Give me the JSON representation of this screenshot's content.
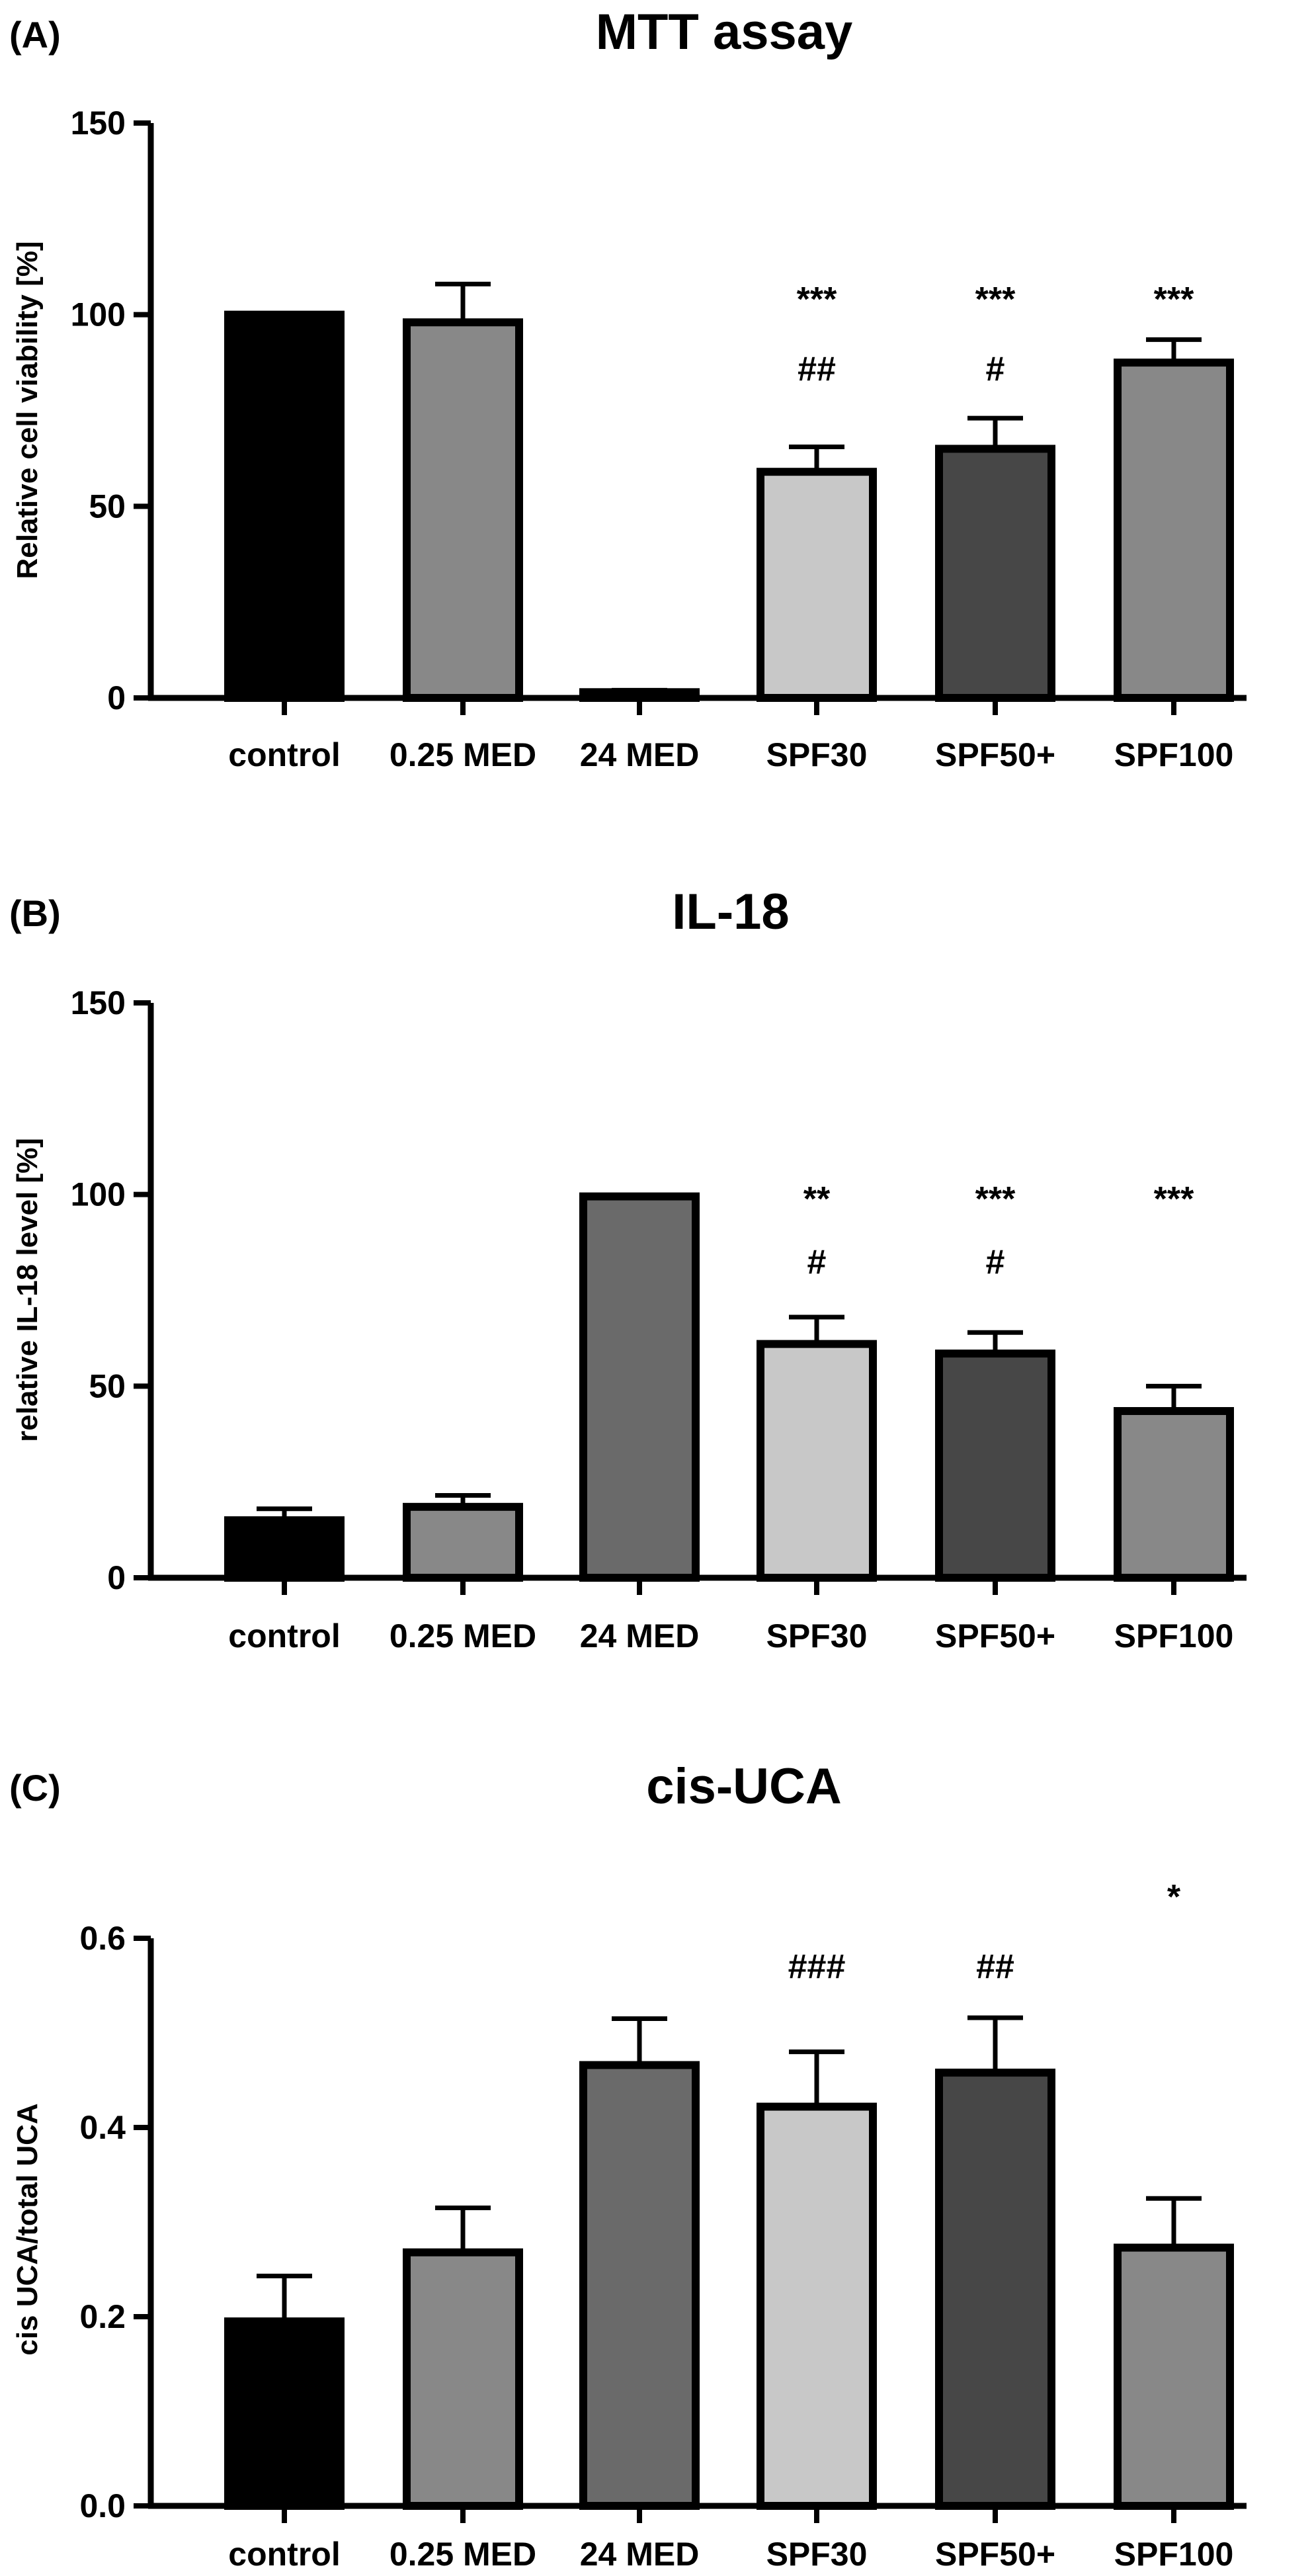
{
  "figure_type": "bar",
  "chart_data": [
    {
      "type": "bar",
      "panel": "(A)",
      "title": "MTT assay",
      "xlabel": "",
      "ylabel": "Relative cell viability [%]",
      "ylim": [
        0,
        150
      ],
      "yticks": [
        "0",
        "50",
        "100",
        "150"
      ],
      "grid": false,
      "categories": [
        "control",
        "0.25 MED",
        "24 MED",
        "SPF30",
        "SPF50+",
        "SPF100"
      ],
      "values": [
        100,
        98,
        1.5,
        59,
        65,
        87.5
      ],
      "errors": [
        0,
        10,
        0.5,
        6.5,
        8,
        6
      ],
      "colors": [
        "#000000",
        "#888888",
        "#666666",
        "#c8c8c8",
        "#474747",
        "#888888"
      ],
      "annotations": [
        {
          "category": "SPF30",
          "lines": [
            "***",
            "##"
          ]
        },
        {
          "category": "SPF50+",
          "lines": [
            "***",
            "#"
          ]
        },
        {
          "category": "SPF100",
          "lines": [
            "***"
          ]
        }
      ]
    },
    {
      "type": "bar",
      "panel": "(B)",
      "title": "IL-18",
      "xlabel": "",
      "ylabel": "relative IL-18 level [%]",
      "ylim": [
        0,
        150
      ],
      "yticks": [
        "0",
        "50",
        "100",
        "150"
      ],
      "grid": false,
      "categories": [
        "control",
        "0.25 MED",
        "24 MED",
        "SPF30",
        "SPF50+",
        "SPF100"
      ],
      "values": [
        15,
        18.5,
        99.5,
        61,
        58.5,
        43.5
      ],
      "errors": [
        3,
        3,
        0,
        7,
        5.5,
        6.5
      ],
      "colors": [
        "#000000",
        "#888888",
        "#6a6a6a",
        "#c8c8c8",
        "#474747",
        "#888888"
      ],
      "annotations": [
        {
          "category": "SPF30",
          "lines": [
            "**",
            "#"
          ]
        },
        {
          "category": "SPF50+",
          "lines": [
            "***",
            "#"
          ]
        },
        {
          "category": "SPF100",
          "lines": [
            "***"
          ]
        }
      ]
    },
    {
      "type": "bar",
      "panel": "(C)",
      "title": "cis-UCA",
      "xlabel": "",
      "ylabel": "cis UCA/total UCA",
      "ylim": [
        0,
        0.6
      ],
      "yticks": [
        "0.0",
        "0.2",
        "0.4",
        "0.6"
      ],
      "grid": false,
      "categories": [
        "control",
        "0.25 MED",
        "24 MED",
        "SPF30",
        "SPF50+",
        "SPF100"
      ],
      "values": [
        0.195,
        0.268,
        0.466,
        0.422,
        0.458,
        0.273
      ],
      "errors": [
        0.048,
        0.047,
        0.049,
        0.058,
        0.058,
        0.052
      ],
      "colors": [
        "#000000",
        "#888888",
        "#6a6a6a",
        "#c8c8c8",
        "#474747",
        "#888888"
      ],
      "annotations": [
        {
          "category": "SPF30",
          "lines": [
            "###"
          ]
        },
        {
          "category": "SPF50+",
          "lines": [
            "##"
          ]
        },
        {
          "category": "SPF100",
          "lines": [
            "*"
          ]
        }
      ]
    }
  ]
}
